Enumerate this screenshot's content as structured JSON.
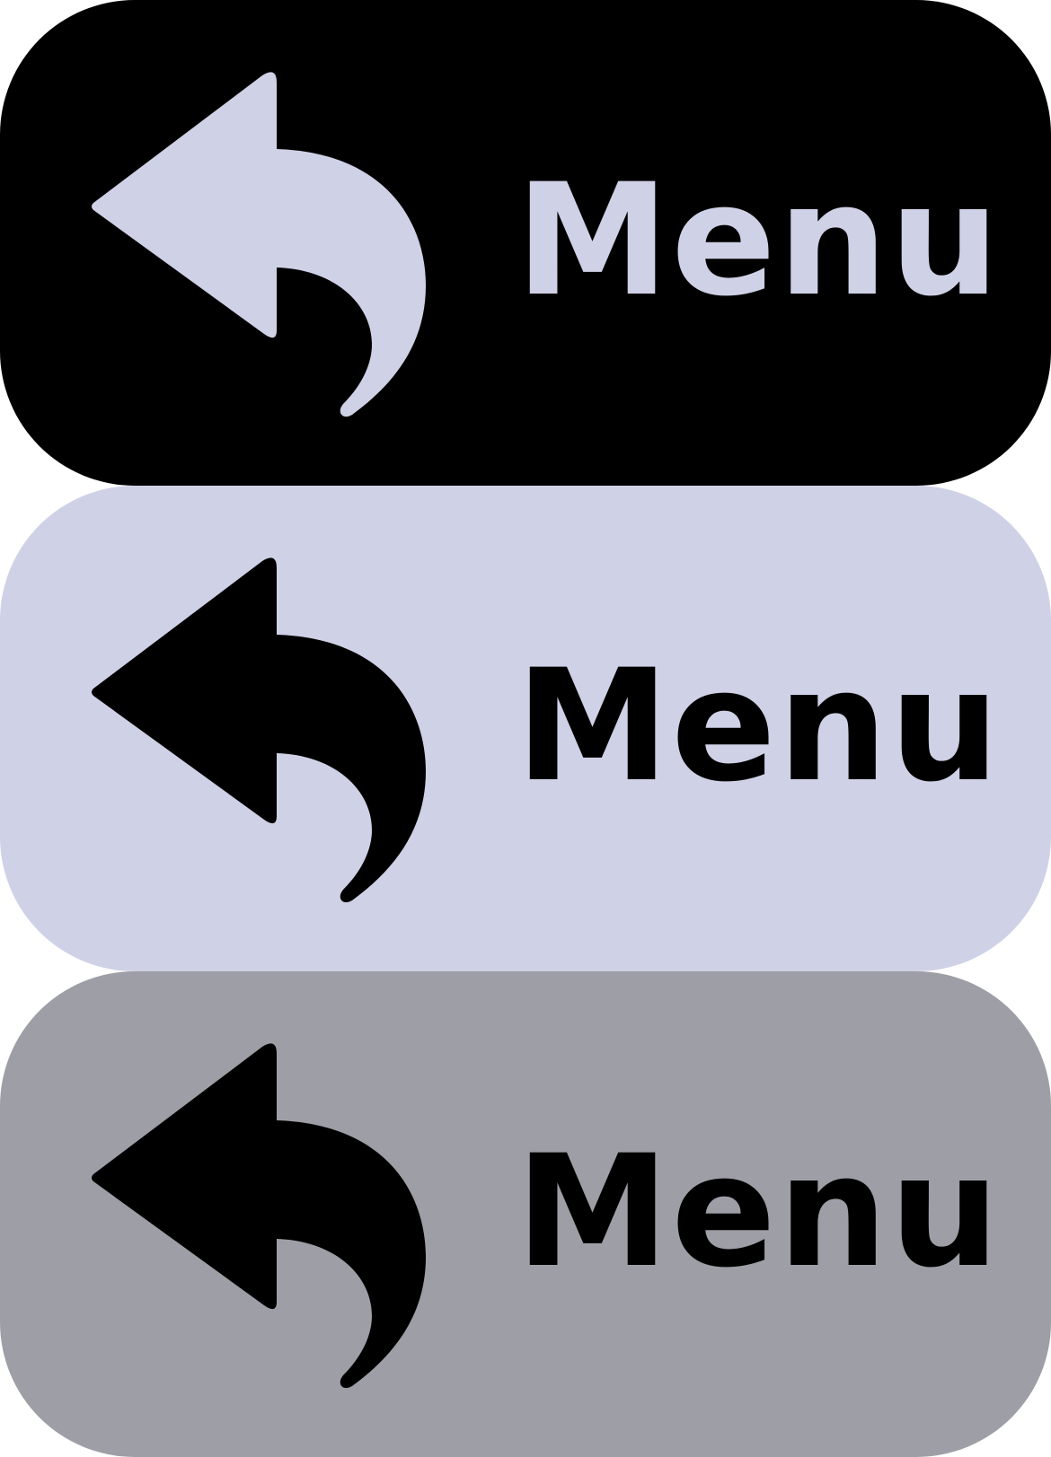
{
  "buttons": [
    {
      "state": "normal",
      "label": "Menu",
      "icon": "back-arrow-icon",
      "background": "#000000",
      "foreground": "#cfd1e6"
    },
    {
      "state": "hover",
      "label": "Menu",
      "icon": "back-arrow-icon",
      "background": "#cfd1e6",
      "foreground": "#000000"
    },
    {
      "state": "pressed",
      "label": "Menu",
      "icon": "back-arrow-icon",
      "background": "#9e9fa6",
      "foreground": "#000000"
    }
  ]
}
